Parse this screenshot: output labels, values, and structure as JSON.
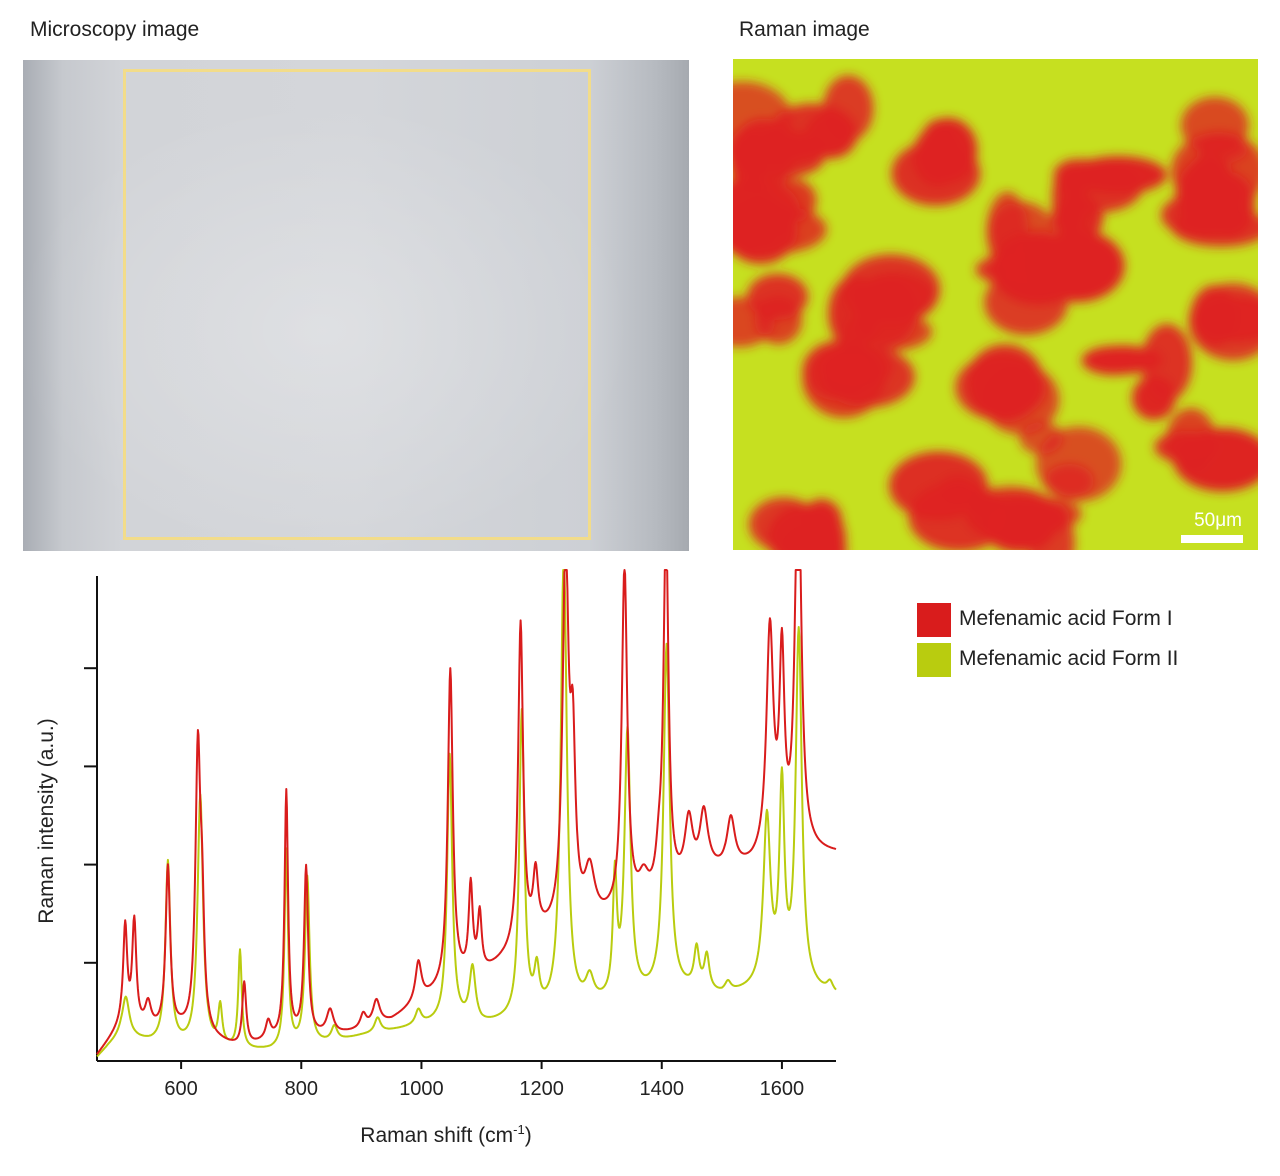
{
  "panels": {
    "microscopy_title": "Microscopy image",
    "raman_title": "Raman image",
    "scale_bar_label": "50μm"
  },
  "colors": {
    "form1": "#d91c1c",
    "form2": "#b9cc0f",
    "roi_outline": "#f2dc8a",
    "raman_form1_phase": "#de2222",
    "raman_form2_phase": "#c6e020"
  },
  "chart_data": {
    "type": "line",
    "xlabel": "Raman shift (cm",
    "xlabel_superscript": "-1",
    "xlabel_suffix": ")",
    "ylabel": "Raman intensity (a.u.)",
    "xlim": [
      460,
      1690
    ],
    "ylim": [
      0,
      50
    ],
    "x_ticks": [
      600,
      800,
      1000,
      1200,
      1400,
      1600
    ],
    "y_ticks_unlabeled": [
      10,
      20,
      30,
      40
    ],
    "legend_position": "right",
    "series": [
      {
        "name": "Mefenamic acid Form I",
        "color": "#d91c1c",
        "baseline": [
          [
            460,
            0.5
          ],
          [
            480,
            2
          ],
          [
            500,
            3.5
          ],
          [
            550,
            3
          ],
          [
            600,
            3
          ],
          [
            700,
            1.2
          ],
          [
            750,
            2
          ],
          [
            800,
            2.5
          ],
          [
            850,
            2.5
          ],
          [
            900,
            3
          ],
          [
            950,
            4
          ],
          [
            1000,
            6
          ],
          [
            1060,
            8
          ],
          [
            1100,
            8.5
          ],
          [
            1150,
            10.5
          ],
          [
            1200,
            12.5
          ],
          [
            1300,
            14
          ],
          [
            1380,
            15.5
          ],
          [
            1420,
            17
          ],
          [
            1450,
            18
          ],
          [
            1480,
            19
          ],
          [
            1500,
            19
          ],
          [
            1550,
            19.5
          ],
          [
            1600,
            20.5
          ],
          [
            1650,
            21
          ],
          [
            1690,
            21
          ]
        ],
        "peaks": [
          [
            507,
            10,
            4
          ],
          [
            522,
            10.5,
            4
          ],
          [
            545,
            2.5,
            6
          ],
          [
            578,
            16.5,
            4.5
          ],
          [
            628,
            28.5,
            5
          ],
          [
            635,
            10,
            4
          ],
          [
            705,
            6.5,
            4
          ],
          [
            745,
            1.8,
            5
          ],
          [
            775,
            25,
            3.5
          ],
          [
            808,
            17,
            4
          ],
          [
            848,
            2.5,
            7
          ],
          [
            903,
            1.5,
            6
          ],
          [
            925,
            2.5,
            7
          ],
          [
            995,
            4,
            6
          ],
          [
            1048,
            32,
            5
          ],
          [
            1082,
            9,
            4
          ],
          [
            1097,
            6,
            4
          ],
          [
            1165,
            33,
            5
          ],
          [
            1190,
            6,
            5
          ],
          [
            1240,
            38,
            6
          ],
          [
            1252,
            16,
            5
          ],
          [
            1280,
            5,
            10
          ],
          [
            1338,
            35,
            5.5
          ],
          [
            1370,
            2.5,
            10
          ],
          [
            1395,
            3,
            6
          ],
          [
            1407,
            37,
            5
          ],
          [
            1445,
            6,
            8
          ],
          [
            1470,
            6,
            8
          ],
          [
            1515,
            5,
            8
          ],
          [
            1580,
            23,
            7
          ],
          [
            1600,
            19,
            5
          ],
          [
            1627,
            41,
            6
          ]
        ]
      },
      {
        "name": "Mefenamic acid Form II",
        "color": "#b9cc0f",
        "baseline": [
          [
            460,
            0.3
          ],
          [
            480,
            1.5
          ],
          [
            500,
            2.5
          ],
          [
            550,
            1.8
          ],
          [
            600,
            1.5
          ],
          [
            700,
            1
          ],
          [
            750,
            1
          ],
          [
            800,
            1.5
          ],
          [
            850,
            1.8
          ],
          [
            900,
            2.5
          ],
          [
            1000,
            3.5
          ],
          [
            1050,
            4
          ],
          [
            1100,
            3.5
          ],
          [
            1200,
            4.5
          ],
          [
            1300,
            5.5
          ],
          [
            1380,
            6.5
          ],
          [
            1400,
            7
          ],
          [
            1450,
            7
          ],
          [
            1500,
            6.5
          ],
          [
            1550,
            7
          ],
          [
            1600,
            7.5
          ],
          [
            1650,
            7
          ],
          [
            1690,
            6.5
          ]
        ],
        "peaks": [
          [
            508,
            4,
            7
          ],
          [
            578,
            18.5,
            5
          ],
          [
            632,
            25.5,
            5.5
          ],
          [
            665,
            4,
            4
          ],
          [
            698,
            10,
            3.5
          ],
          [
            775,
            20,
            3.5
          ],
          [
            810,
            17,
            4.5
          ],
          [
            855,
            1.5,
            6
          ],
          [
            927,
            1.5,
            6
          ],
          [
            995,
            1.5,
            6
          ],
          [
            1047,
            27,
            5
          ],
          [
            1085,
            5.5,
            6
          ],
          [
            1167,
            31,
            5
          ],
          [
            1192,
            4,
            5
          ],
          [
            1237,
            47,
            6
          ],
          [
            1280,
            2.5,
            8
          ],
          [
            1322,
            12,
            4
          ],
          [
            1343,
            27,
            6
          ],
          [
            1408,
            35,
            6
          ],
          [
            1458,
            4,
            5
          ],
          [
            1475,
            3.5,
            5
          ],
          [
            1510,
            1,
            6
          ],
          [
            1575,
            17,
            7
          ],
          [
            1600,
            19.5,
            5
          ],
          [
            1628,
            36,
            6
          ],
          [
            1680,
            1,
            6
          ]
        ]
      }
    ]
  }
}
